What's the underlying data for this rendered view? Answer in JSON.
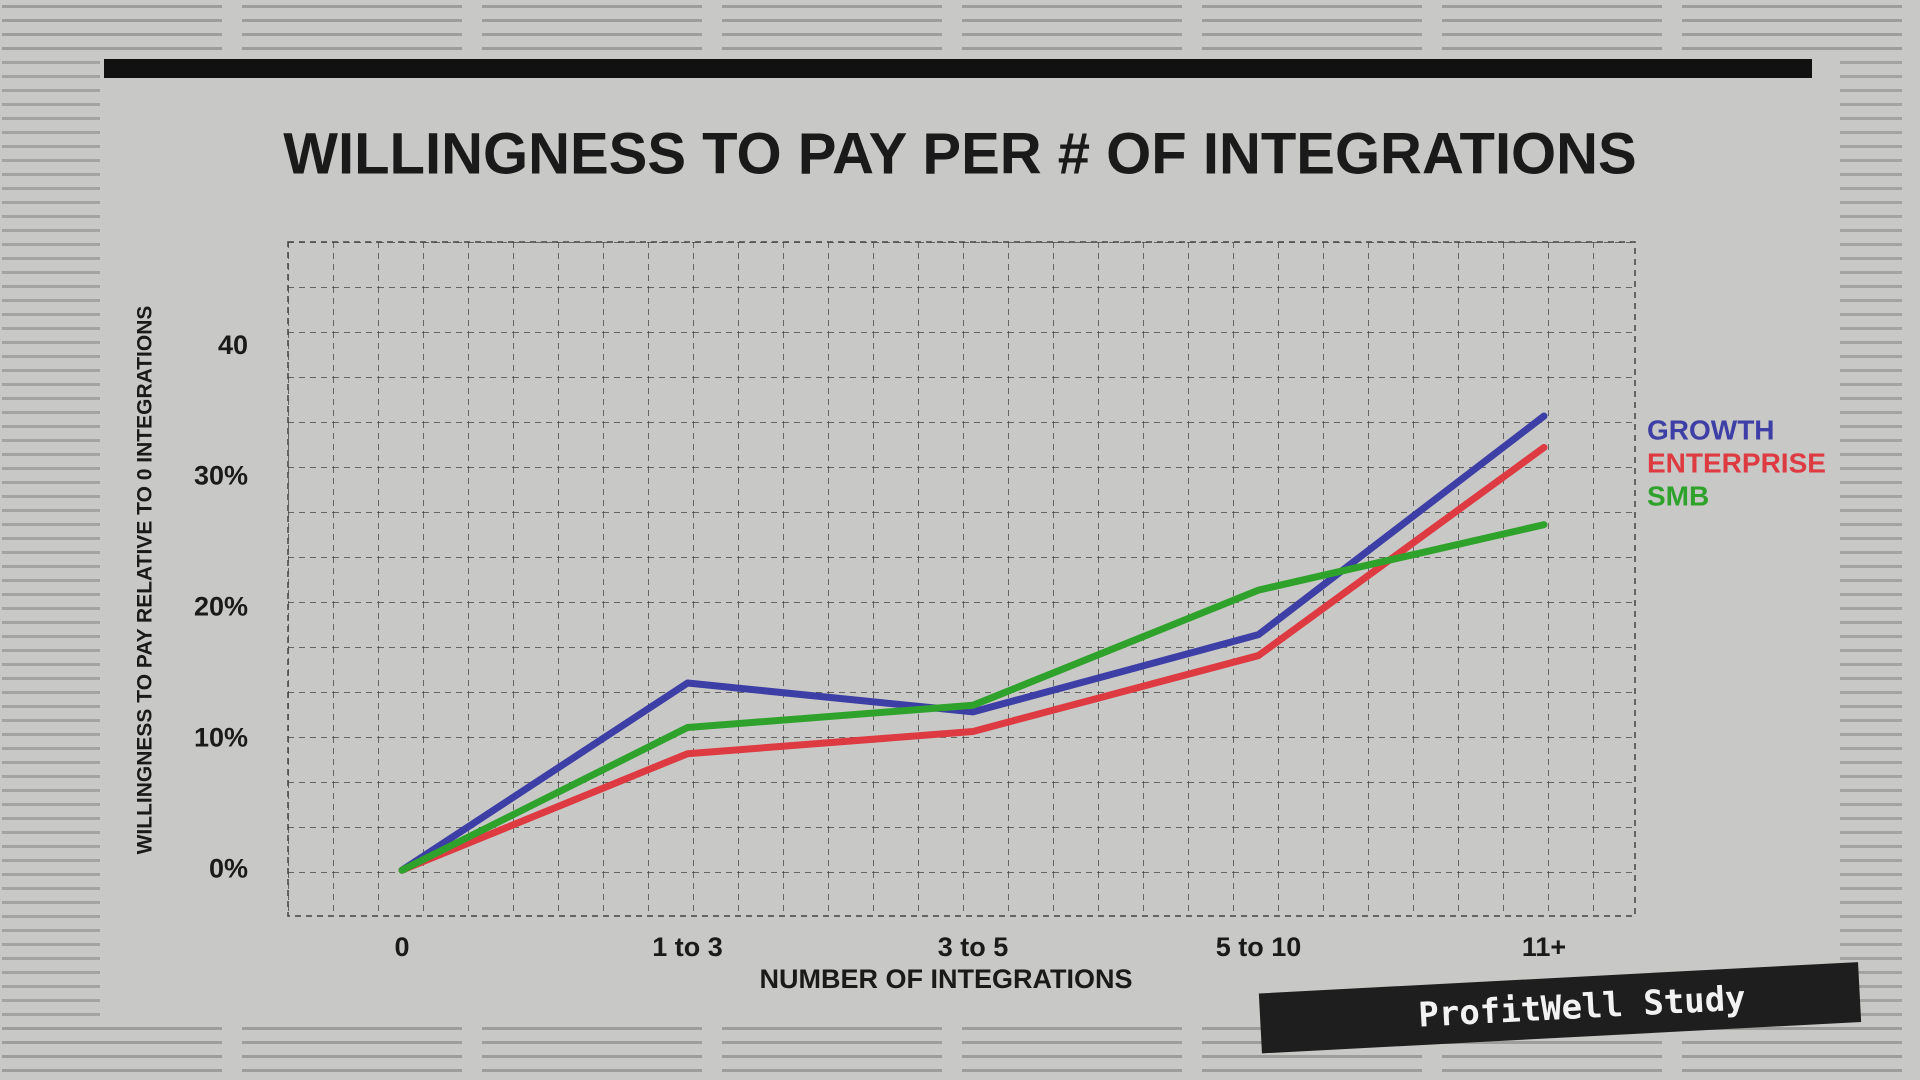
{
  "chart_data": {
    "type": "line",
    "title": "WILLINGNESS TO PAY PER # OF INTEGRATIONS",
    "x_label": "NUMBER OF INTEGRATIONS",
    "y_label": "WILLINGNESS TO PAY RELATIVE TO 0 INTEGRATIONS",
    "categories": [
      "0",
      "1 to 3",
      "3 to 5",
      "5 to 10",
      "11+"
    ],
    "series": [
      {
        "name": "GROWTH",
        "color": "#3d3fa6",
        "values": [
          0,
          14.3,
          12.1,
          18,
          34.7
        ]
      },
      {
        "name": "ENTERPRISE",
        "color": "#de3a42",
        "values": [
          0,
          8.9,
          10.6,
          16.4,
          32.3
        ]
      },
      {
        "name": "SMB",
        "color": "#2fa22c",
        "values": [
          0,
          10.9,
          12.6,
          21.4,
          26.4
        ]
      }
    ],
    "ylim": [
      -3.5,
      48
    ],
    "yticks": [
      {
        "value": 0,
        "label": "0%"
      },
      {
        "value": 10,
        "label": "10%"
      },
      {
        "value": 20,
        "label": "20%"
      },
      {
        "value": 30,
        "label": "30%"
      },
      40
    ],
    "legend": "right",
    "badge": "ProfitWell Study"
  }
}
